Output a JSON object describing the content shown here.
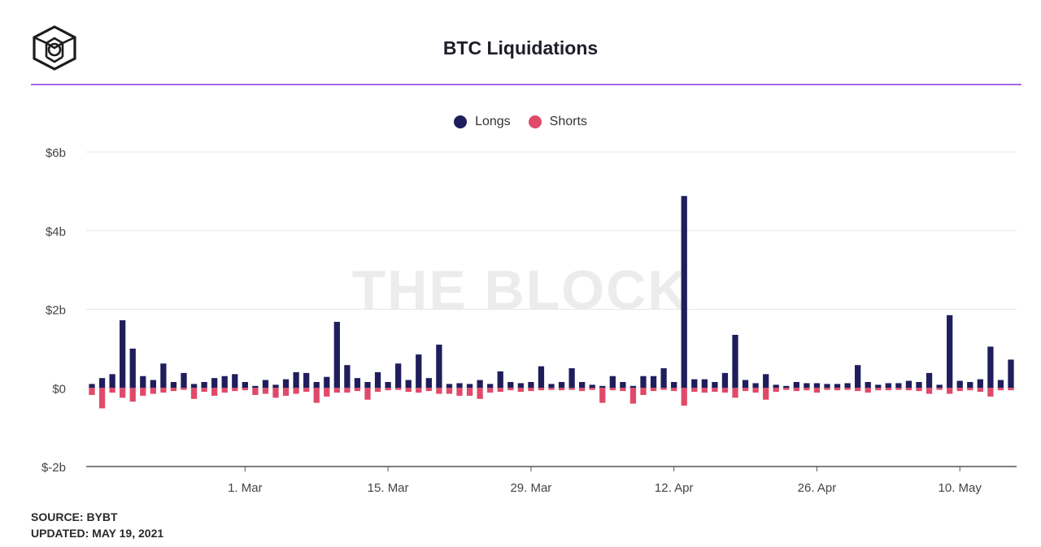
{
  "header": {
    "title": "BTC Liquidations"
  },
  "watermark": "THE BLOCK",
  "legend": [
    {
      "label": "Longs",
      "color": "#1f1e5c"
    },
    {
      "label": "Shorts",
      "color": "#e04a6a"
    }
  ],
  "footer": {
    "source": "SOURCE: BYBT",
    "updated": "UPDATED: MAY 19, 2021"
  },
  "chart_data": {
    "type": "bar",
    "stacked": true,
    "title": "BTC Liquidations",
    "xlabel": "",
    "ylabel": "",
    "ylim": [
      -2,
      6
    ],
    "yticks": [
      -2,
      0,
      2,
      4,
      6
    ],
    "ytick_labels": [
      "$-2b",
      "$0",
      "$2b",
      "$4b",
      "$6b"
    ],
    "x_tick_labels": [
      {
        "index": 15,
        "label": "1. Mar"
      },
      {
        "index": 29,
        "label": "15. Mar"
      },
      {
        "index": 43,
        "label": "29. Mar"
      },
      {
        "index": 57,
        "label": "12. Apr"
      },
      {
        "index": 71,
        "label": "26. Apr"
      },
      {
        "index": 85,
        "label": "10. May"
      }
    ],
    "grid": true,
    "legend_position": "top-center",
    "series": [
      {
        "name": "Longs",
        "color": "#1f1e5c",
        "values": [
          0.1,
          0.25,
          0.35,
          1.72,
          1.0,
          0.3,
          0.2,
          0.62,
          0.15,
          0.38,
          0.1,
          0.15,
          0.25,
          0.3,
          0.35,
          0.15,
          0.05,
          0.2,
          0.08,
          0.22,
          0.4,
          0.38,
          0.15,
          0.28,
          1.68,
          0.58,
          0.25,
          0.15,
          0.4,
          0.15,
          0.62,
          0.2,
          0.85,
          0.25,
          1.1,
          0.1,
          0.12,
          0.1,
          0.2,
          0.1,
          0.42,
          0.15,
          0.12,
          0.15,
          0.55,
          0.1,
          0.15,
          0.5,
          0.15,
          0.08,
          0.05,
          0.3,
          0.15,
          0.05,
          0.3,
          0.3,
          0.5,
          0.15,
          4.88,
          0.22,
          0.22,
          0.15,
          0.38,
          1.35,
          0.2,
          0.12,
          0.35,
          0.08,
          0.05,
          0.15,
          0.12,
          0.12,
          0.1,
          0.1,
          0.12,
          0.58,
          0.15,
          0.08,
          0.12,
          0.12,
          0.18,
          0.15,
          0.38,
          0.08,
          1.85,
          0.18,
          0.15,
          0.22,
          1.05,
          0.2,
          0.72
        ]
      },
      {
        "name": "Shorts",
        "color": "#e04a6a",
        "values": [
          -0.18,
          -0.52,
          -0.12,
          -0.25,
          -0.35,
          -0.2,
          -0.15,
          -0.12,
          -0.08,
          -0.05,
          -0.28,
          -0.1,
          -0.2,
          -0.12,
          -0.08,
          -0.06,
          -0.18,
          -0.15,
          -0.25,
          -0.2,
          -0.15,
          -0.1,
          -0.38,
          -0.22,
          -0.12,
          -0.12,
          -0.08,
          -0.3,
          -0.1,
          -0.06,
          -0.05,
          -0.1,
          -0.12,
          -0.08,
          -0.15,
          -0.15,
          -0.2,
          -0.2,
          -0.28,
          -0.12,
          -0.1,
          -0.06,
          -0.1,
          -0.08,
          -0.06,
          -0.05,
          -0.06,
          -0.05,
          -0.08,
          -0.05,
          -0.38,
          -0.06,
          -0.08,
          -0.4,
          -0.18,
          -0.08,
          -0.05,
          -0.08,
          -0.45,
          -0.1,
          -0.12,
          -0.1,
          -0.12,
          -0.25,
          -0.08,
          -0.12,
          -0.3,
          -0.1,
          -0.05,
          -0.08,
          -0.06,
          -0.12,
          -0.05,
          -0.06,
          -0.05,
          -0.08,
          -0.12,
          -0.06,
          -0.06,
          -0.05,
          -0.06,
          -0.08,
          -0.15,
          -0.05,
          -0.15,
          -0.08,
          -0.06,
          -0.1,
          -0.22,
          -0.06,
          -0.06
        ]
      }
    ]
  }
}
